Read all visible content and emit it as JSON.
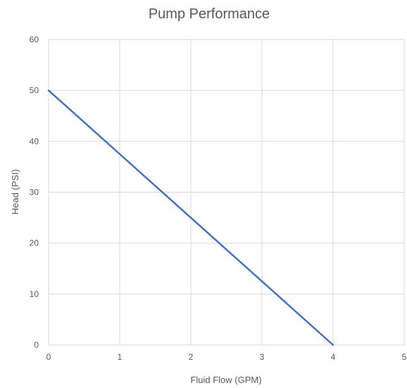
{
  "chart_data": {
    "type": "line",
    "title": "Pump Performance",
    "xlabel": "Fluid Flow (GPM)",
    "ylabel": "Head (PSI)",
    "xlim": [
      0,
      5
    ],
    "ylim": [
      0,
      60
    ],
    "x_ticks": [
      "0",
      "1",
      "2",
      "3",
      "4",
      "5"
    ],
    "y_ticks": [
      "0",
      "10",
      "20",
      "30",
      "40",
      "50",
      "60"
    ],
    "grid": true,
    "legend": "none",
    "series": [
      {
        "color": "#4472c4",
        "x": [
          0,
          1,
          2,
          3,
          4
        ],
        "y": [
          50,
          37.5,
          25,
          12.5,
          0
        ]
      }
    ]
  }
}
